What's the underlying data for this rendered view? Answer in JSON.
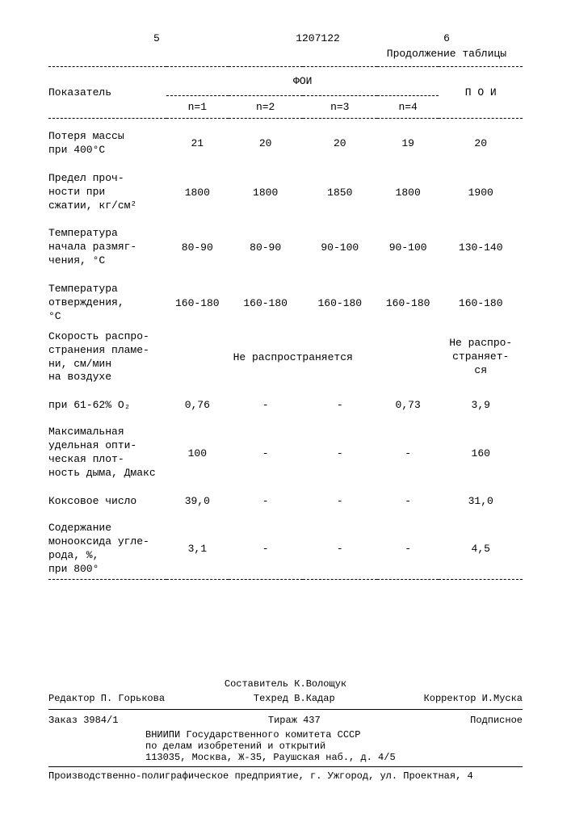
{
  "page_left": "5",
  "doc_number": "1207122",
  "page_right": "6",
  "continuation": "Продолжение таблицы",
  "header": {
    "col_label": "Показатель",
    "group_foi": "ФОИ",
    "col_poi": "П О И",
    "subcols": [
      "n=1",
      "n=2",
      "n=3",
      "n=4"
    ]
  },
  "rows": [
    {
      "label": "Потеря массы\nпри 400°С",
      "c1": "21",
      "c2": "20",
      "c3": "20",
      "c4": "19",
      "c5": "20"
    },
    {
      "label": "Предел проч-\nности при\nсжатии, кг/см²",
      "c1": "1800",
      "c2": "1800",
      "c3": "1850",
      "c4": "1800",
      "c5": "1900"
    },
    {
      "label": "Температура\nначала размяг-\nчения, °С",
      "c1": "80-90",
      "c2": "80-90",
      "c3": "90-100",
      "c4": "90-100",
      "c5": "130-140"
    },
    {
      "label": "Температура\nотверждения,\n°С",
      "c1": "160-180",
      "c2": "160-180",
      "c3": "160-180",
      "c4": "160-180",
      "c5": "160-180"
    },
    {
      "label": "Скорость распро-\nстранения пламе-\nни,  см/мин\n  на воздухе",
      "c1": "",
      "c2": "Не распространяется",
      "c3": "",
      "c4": "",
      "c5": "Не распро-\nстраняет-\nся"
    },
    {
      "label": "  при 61-62% О₂",
      "c1": "0,76",
      "c2": "-",
      "c3": "-",
      "c4": "0,73",
      "c5": "3,9"
    },
    {
      "label": "Максимальная\nудельная опти-\nческая плот-\nность дыма, Дмакс",
      "c1": "100",
      "c2": "-",
      "c3": "-",
      "c4": "-",
      "c5": "160"
    },
    {
      "label": "Коксовое число",
      "c1": "39,0",
      "c2": "-",
      "c3": "-",
      "c4": "-",
      "c5": "31,0"
    },
    {
      "label": "Содержание\nмонооксида угле-\nрода, %,\nпри 800°",
      "c1": "3,1",
      "c2": "-",
      "c3": "-",
      "c4": "-",
      "c5": "4,5"
    }
  ],
  "footer": {
    "composer": "Составитель  К.Волощук",
    "editor": "Редактор П. Горькова",
    "techred": "Техред В.Кадар",
    "corrector": "Корректор И.Муска",
    "order": "Заказ 3984/1",
    "tirazh": "Тираж 437",
    "subscription": "Подписное",
    "org1": "ВНИИПИ Государственного комитета СССР",
    "org2": "по делам изобретений и открытий",
    "org3": "113035, Москва, Ж-35, Раушская наб., д. 4/5",
    "printer": "Производственно-полиграфическое предприятие, г. Ужгород, ул. Проектная, 4"
  }
}
